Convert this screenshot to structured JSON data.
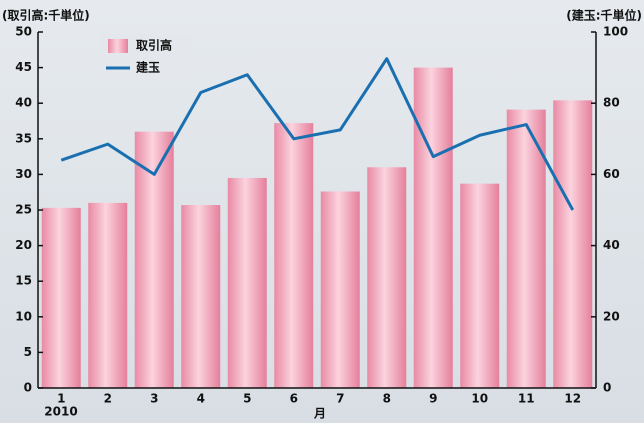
{
  "chart_data": {
    "type": "bar_line",
    "y_label": "(取引高:千単位)",
    "y2_label": "(建玉:千単位)",
    "x_label": "月",
    "year_label": "2010",
    "categories": [
      "1",
      "2",
      "3",
      "4",
      "5",
      "6",
      "7",
      "8",
      "9",
      "10",
      "11",
      "12"
    ],
    "series": [
      {
        "name": "取引高",
        "type": "bar",
        "color": "#f2a0b6",
        "values": [
          25.3,
          26.0,
          36.0,
          25.7,
          29.5,
          37.2,
          27.6,
          31.0,
          45.0,
          28.7,
          39.1,
          40.4
        ]
      },
      {
        "name": "建玉",
        "type": "line",
        "axis": "y2",
        "color": "#1a6fb0",
        "values": [
          64,
          68.5,
          60,
          83,
          88,
          70,
          72.5,
          92.5,
          65,
          71,
          74,
          50
        ]
      }
    ],
    "ylim": [
      0,
      50
    ],
    "yticks": [
      0,
      5,
      10,
      15,
      20,
      25,
      30,
      35,
      40,
      45,
      50
    ],
    "y2lim": [
      0,
      100
    ],
    "y2ticks": [
      0,
      20,
      40,
      60,
      80,
      100
    ]
  }
}
